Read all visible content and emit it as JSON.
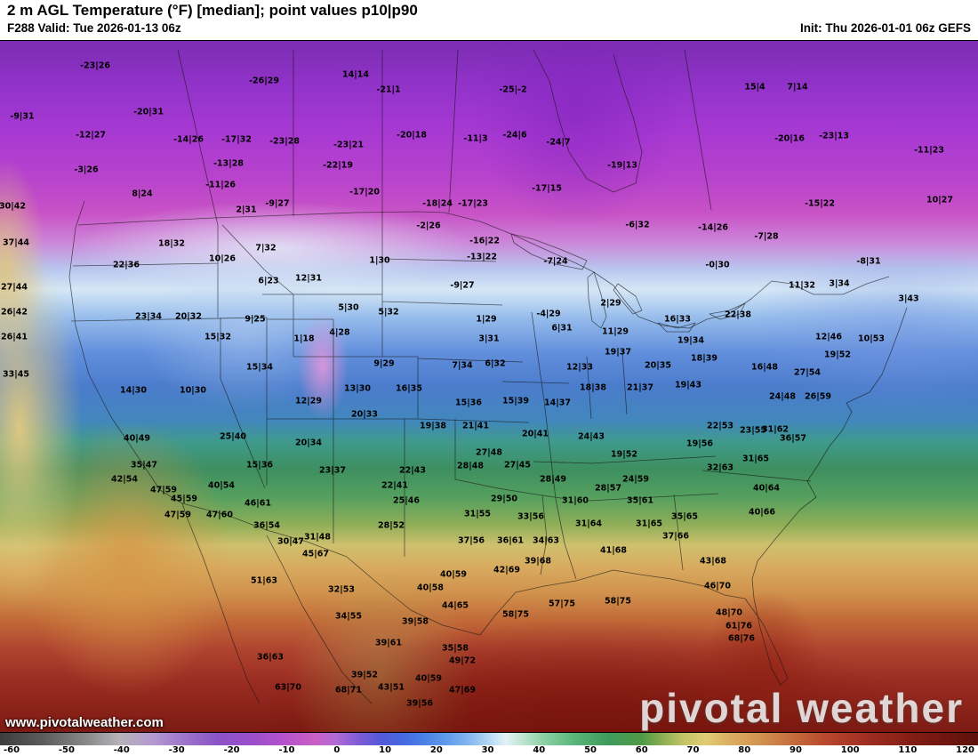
{
  "header": {
    "title": "2 m AGL Temperature (°F) [median]; point values p10|p90",
    "valid": "F288 Valid: Tue 2026-01-13 06z",
    "init": "Init: Thu 2026-01-01 06z GEFS"
  },
  "watermarks": {
    "site_url": "www.pivotalweather.com",
    "brand": "pivotal weather"
  },
  "colorbar": {
    "min": -60,
    "max": 120,
    "ticks": [
      "-60",
      "-50",
      "-40",
      "-30",
      "-20",
      "-10",
      "0",
      "10",
      "20",
      "30",
      "40",
      "50",
      "60",
      "70",
      "80",
      "90",
      "100",
      "110",
      "120"
    ],
    "stops": [
      {
        "v": -60,
        "c": "#3d3d3d"
      },
      {
        "v": -52,
        "c": "#5c5c5c"
      },
      {
        "v": -44,
        "c": "#8a8a8a"
      },
      {
        "v": -38,
        "c": "#b5b2b8"
      },
      {
        "v": -32,
        "c": "#b49ad0"
      },
      {
        "v": -26,
        "c": "#9d74cb"
      },
      {
        "v": -20,
        "c": "#8a54c6"
      },
      {
        "v": -14,
        "c": "#9a4ecb"
      },
      {
        "v": -8,
        "c": "#b551cb"
      },
      {
        "v": -2,
        "c": "#c95fc6"
      },
      {
        "v": 2,
        "c": "#b06ad4"
      },
      {
        "v": 6,
        "c": "#7e5cd6"
      },
      {
        "v": 10,
        "c": "#5558da"
      },
      {
        "v": 14,
        "c": "#4568e0"
      },
      {
        "v": 18,
        "c": "#4a80e6"
      },
      {
        "v": 22,
        "c": "#5f9aec"
      },
      {
        "v": 26,
        "c": "#82b4f0"
      },
      {
        "v": 30,
        "c": "#b4d8f4"
      },
      {
        "v": 33,
        "c": "#e2f0f8"
      },
      {
        "v": 36,
        "c": "#c2e6d2"
      },
      {
        "v": 40,
        "c": "#8cd0a4"
      },
      {
        "v": 46,
        "c": "#57b478"
      },
      {
        "v": 52,
        "c": "#3f9a5c"
      },
      {
        "v": 58,
        "c": "#4f9a48"
      },
      {
        "v": 62,
        "c": "#8cb052"
      },
      {
        "v": 66,
        "c": "#c6c468"
      },
      {
        "v": 70,
        "c": "#e0cc74"
      },
      {
        "v": 74,
        "c": "#dcb062"
      },
      {
        "v": 80,
        "c": "#d29250"
      },
      {
        "v": 86,
        "c": "#c66c3c"
      },
      {
        "v": 92,
        "c": "#b8482e"
      },
      {
        "v": 100,
        "c": "#9e2c20"
      },
      {
        "v": 110,
        "c": "#7c1a12"
      },
      {
        "v": 120,
        "c": "#5e100c"
      }
    ]
  },
  "chart_data": {
    "type": "heatmap",
    "title": "2 m AGL Temperature (°F) [median]; point values p10|p90",
    "model": "GEFS",
    "forecast_hour": "F288",
    "valid_time": "Tue 2026-01-13 06z",
    "init_time": "Thu 2026-01-01 06z",
    "units": "°F",
    "point_value_format": "p10|p90",
    "colorbar_range": [
      -60,
      120
    ],
    "points": [
      [
        107,
        73,
        "-23|26"
      ],
      [
        297,
        90,
        "-26|29"
      ],
      [
        400,
        83,
        "14|14"
      ],
      [
        437,
        100,
        "-21|1"
      ],
      [
        577,
        100,
        "-25|-2"
      ],
      [
        849,
        97,
        "15|4"
      ],
      [
        897,
        97,
        "7|14"
      ],
      [
        25,
        130,
        "-9|31"
      ],
      [
        167,
        125,
        "-20|31"
      ],
      [
        102,
        151,
        "-12|27"
      ],
      [
        212,
        156,
        "-14|26"
      ],
      [
        266,
        156,
        "-17|32"
      ],
      [
        320,
        158,
        "-23|28"
      ],
      [
        392,
        162,
        "-23|21"
      ],
      [
        463,
        151,
        "-20|18"
      ],
      [
        535,
        155,
        "-11|3"
      ],
      [
        579,
        151,
        "-24|6"
      ],
      [
        628,
        159,
        "-24|7"
      ],
      [
        888,
        155,
        "-20|16"
      ],
      [
        938,
        152,
        "-23|13"
      ],
      [
        1045,
        168,
        "-11|23"
      ],
      [
        97,
        190,
        "-3|26"
      ],
      [
        257,
        183,
        "-13|28"
      ],
      [
        380,
        185,
        "-22|19"
      ],
      [
        700,
        185,
        "-19|13"
      ],
      [
        248,
        207,
        "-11|26"
      ],
      [
        160,
        217,
        "8|24"
      ],
      [
        410,
        215,
        "-17|20"
      ],
      [
        615,
        211,
        "-17|15"
      ],
      [
        492,
        228,
        "-18|24"
      ],
      [
        532,
        228,
        "-17|23"
      ],
      [
        277,
        235,
        "2|31"
      ],
      [
        312,
        228,
        "-9|27"
      ],
      [
        922,
        228,
        "-15|22"
      ],
      [
        1057,
        224,
        "10|27"
      ],
      [
        14,
        231,
        "30|42"
      ],
      [
        482,
        253,
        "-2|26"
      ],
      [
        717,
        252,
        "-6|32"
      ],
      [
        802,
        255,
        "-14|26"
      ],
      [
        545,
        270,
        "-16|22"
      ],
      [
        862,
        265,
        "-7|28"
      ],
      [
        18,
        272,
        "37|44"
      ],
      [
        193,
        273,
        "18|32"
      ],
      [
        299,
        278,
        "7|32"
      ],
      [
        142,
        297,
        "22|36"
      ],
      [
        250,
        290,
        "10|26"
      ],
      [
        427,
        292,
        "1|30"
      ],
      [
        542,
        288,
        "-13|22"
      ],
      [
        625,
        293,
        "-7|24"
      ],
      [
        807,
        297,
        "-0|30"
      ],
      [
        977,
        293,
        "-8|31"
      ],
      [
        16,
        322,
        "27|44"
      ],
      [
        302,
        315,
        "6|23"
      ],
      [
        347,
        312,
        "12|31"
      ],
      [
        520,
        320,
        "-9|27"
      ],
      [
        902,
        320,
        "11|32"
      ],
      [
        944,
        318,
        "3|34"
      ],
      [
        1022,
        335,
        "3|43"
      ],
      [
        16,
        350,
        "26|42"
      ],
      [
        167,
        355,
        "23|34"
      ],
      [
        212,
        355,
        "20|32"
      ],
      [
        287,
        358,
        "9|25"
      ],
      [
        392,
        345,
        "5|30"
      ],
      [
        437,
        350,
        "5|32"
      ],
      [
        547,
        358,
        "1|29"
      ],
      [
        617,
        352,
        "-4|29"
      ],
      [
        687,
        340,
        "2|29"
      ],
      [
        762,
        358,
        "16|33"
      ],
      [
        830,
        353,
        "22|38"
      ],
      [
        932,
        378,
        "12|46"
      ],
      [
        980,
        380,
        "10|53"
      ],
      [
        16,
        378,
        "26|41"
      ],
      [
        245,
        378,
        "15|32"
      ],
      [
        342,
        380,
        "1|18"
      ],
      [
        382,
        373,
        "4|28"
      ],
      [
        550,
        380,
        "3|31"
      ],
      [
        632,
        368,
        "6|31"
      ],
      [
        692,
        372,
        "11|29"
      ],
      [
        777,
        382,
        "19|34"
      ],
      [
        942,
        398,
        "19|52"
      ],
      [
        18,
        420,
        "33|45"
      ],
      [
        292,
        412,
        "15|34"
      ],
      [
        432,
        408,
        "9|29"
      ],
      [
        520,
        410,
        "7|34"
      ],
      [
        557,
        408,
        "6|32"
      ],
      [
        652,
        412,
        "12|33"
      ],
      [
        695,
        395,
        "19|37"
      ],
      [
        740,
        410,
        "20|35"
      ],
      [
        792,
        402,
        "18|39"
      ],
      [
        860,
        412,
        "16|48"
      ],
      [
        908,
        418,
        "27|54"
      ],
      [
        150,
        438,
        "14|30"
      ],
      [
        217,
        438,
        "10|30"
      ],
      [
        402,
        436,
        "13|30"
      ],
      [
        460,
        436,
        "16|35"
      ],
      [
        347,
        450,
        "12|29"
      ],
      [
        667,
        435,
        "18|38"
      ],
      [
        720,
        435,
        "21|37"
      ],
      [
        774,
        432,
        "19|43"
      ],
      [
        880,
        445,
        "24|48"
      ],
      [
        920,
        445,
        "26|59"
      ],
      [
        527,
        452,
        "15|36"
      ],
      [
        580,
        450,
        "15|39"
      ],
      [
        627,
        452,
        "14|37"
      ],
      [
        410,
        465,
        "20|33"
      ],
      [
        154,
        492,
        "40|49"
      ],
      [
        262,
        490,
        "25|40"
      ],
      [
        487,
        478,
        "19|38"
      ],
      [
        535,
        478,
        "21|41"
      ],
      [
        602,
        487,
        "20|41"
      ],
      [
        665,
        490,
        "24|43"
      ],
      [
        810,
        478,
        "22|53"
      ],
      [
        847,
        483,
        "23|55"
      ],
      [
        872,
        482,
        "31|62"
      ],
      [
        892,
        492,
        "36|57"
      ],
      [
        787,
        498,
        "19|56"
      ],
      [
        347,
        497,
        "20|34"
      ],
      [
        162,
        522,
        "35|47"
      ],
      [
        292,
        522,
        "15|36"
      ],
      [
        374,
        528,
        "23|37"
      ],
      [
        464,
        528,
        "22|43"
      ],
      [
        529,
        523,
        "28|48"
      ],
      [
        550,
        508,
        "27|48"
      ],
      [
        582,
        522,
        "27|45"
      ],
      [
        702,
        510,
        "19|52"
      ],
      [
        850,
        515,
        "31|65"
      ],
      [
        810,
        525,
        "32|63"
      ],
      [
        140,
        538,
        "42|54"
      ],
      [
        184,
        550,
        "47|59"
      ],
      [
        249,
        545,
        "40|54"
      ],
      [
        622,
        538,
        "28|49"
      ],
      [
        715,
        538,
        "24|59"
      ],
      [
        684,
        548,
        "28|57"
      ],
      [
        207,
        560,
        "45|59"
      ],
      [
        290,
        565,
        "46|61"
      ],
      [
        444,
        545,
        "22|41"
      ],
      [
        457,
        562,
        "25|46"
      ],
      [
        567,
        560,
        "29|50"
      ],
      [
        647,
        562,
        "31|60"
      ],
      [
        720,
        562,
        "35|61"
      ],
      [
        862,
        548,
        "40|64"
      ],
      [
        200,
        578,
        "47|59"
      ],
      [
        247,
        578,
        "47|60"
      ],
      [
        300,
        590,
        "36|54"
      ],
      [
        537,
        577,
        "31|55"
      ],
      [
        597,
        580,
        "33|56"
      ],
      [
        662,
        588,
        "31|64"
      ],
      [
        730,
        588,
        "31|65"
      ],
      [
        770,
        580,
        "35|65"
      ],
      [
        857,
        575,
        "40|66"
      ],
      [
        327,
        608,
        "30|47"
      ],
      [
        357,
        603,
        "31|48"
      ],
      [
        440,
        590,
        "28|52"
      ],
      [
        530,
        607,
        "37|56"
      ],
      [
        574,
        607,
        "36|61"
      ],
      [
        614,
        607,
        "34|63"
      ],
      [
        760,
        602,
        "37|66"
      ],
      [
        690,
        618,
        "41|68"
      ],
      [
        605,
        630,
        "39|68"
      ],
      [
        570,
        640,
        "42|69"
      ],
      [
        802,
        630,
        "43|68"
      ],
      [
        355,
        622,
        "45|67"
      ],
      [
        297,
        652,
        "51|63"
      ],
      [
        384,
        662,
        "32|53"
      ],
      [
        510,
        645,
        "40|59"
      ],
      [
        484,
        660,
        "40|58"
      ],
      [
        580,
        690,
        "58|75"
      ],
      [
        632,
        678,
        "57|75"
      ],
      [
        695,
        675,
        "58|75"
      ],
      [
        807,
        658,
        "46|70"
      ],
      [
        392,
        692,
        "34|55"
      ],
      [
        467,
        698,
        "39|58"
      ],
      [
        512,
        680,
        "44|65"
      ],
      [
        820,
        688,
        "48|70"
      ],
      [
        831,
        703,
        "61|76"
      ],
      [
        437,
        722,
        "39|61"
      ],
      [
        512,
        728,
        "35|58"
      ],
      [
        520,
        742,
        "49|72"
      ],
      [
        834,
        717,
        "68|76"
      ],
      [
        304,
        738,
        "36|63"
      ],
      [
        410,
        758,
        "39|52"
      ],
      [
        440,
        772,
        "43|51"
      ],
      [
        482,
        762,
        "40|59"
      ],
      [
        520,
        775,
        "47|69"
      ],
      [
        324,
        772,
        "63|70"
      ],
      [
        392,
        775,
        "68|71"
      ],
      [
        472,
        790,
        "39|56"
      ]
    ]
  }
}
